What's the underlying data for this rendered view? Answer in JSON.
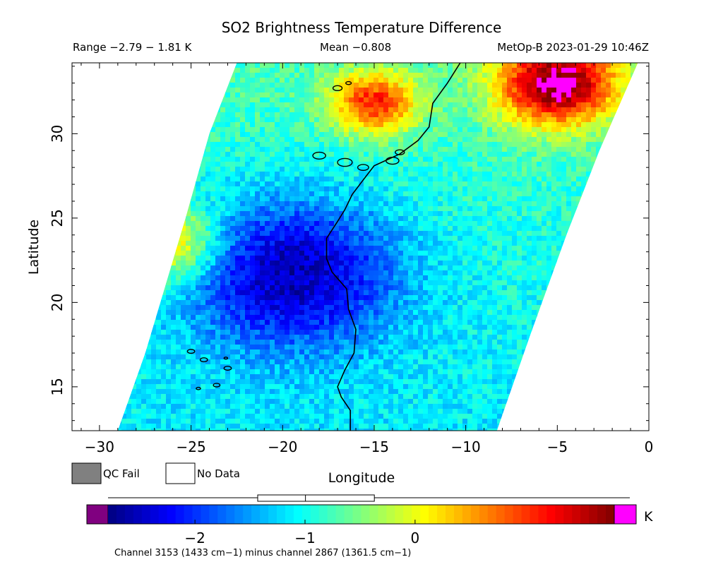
{
  "chart_data": {
    "type": "heatmap",
    "title": "SO2 Brightness Temperature Difference",
    "range_text": "Range −2.79 − 1.81 K",
    "mean_text": "Mean −0.808",
    "source_text": "MetOp-B 2023-01-29 10:46Z",
    "xlabel": "Longitude",
    "ylabel": "Latitude",
    "xlim": [
      -31.5,
      0
    ],
    "ylim": [
      12.4,
      34.2
    ],
    "xticks": [
      -30,
      -25,
      -20,
      -15,
      -10,
      -5,
      0
    ],
    "xtick_labels": [
      "−30",
      "−25",
      "−20",
      "−15",
      "−10",
      "−5",
      "0"
    ],
    "yticks": [
      15,
      20,
      25,
      30
    ],
    "ytick_labels": [
      "15",
      "20",
      "25",
      "30"
    ],
    "swath": {
      "left_edge": [
        [
          -29.0,
          12.4
        ],
        [
          -27.5,
          17.0
        ],
        [
          -25.3,
          25.0
        ],
        [
          -24.0,
          30.0
        ],
        [
          -22.5,
          34.2
        ]
      ],
      "right_edge": [
        [
          -8.3,
          12.4
        ],
        [
          -6.5,
          18.0
        ],
        [
          -4.5,
          24.0
        ],
        [
          -2.7,
          29.0
        ],
        [
          -0.6,
          34.2
        ]
      ]
    },
    "features": [
      {
        "name": "low-anomaly",
        "lon": -19.5,
        "lat": 21.8,
        "value": -2.6,
        "spread": 4.5
      },
      {
        "name": "high-band-north",
        "lon": -15,
        "lat": 31.8,
        "value": 0.9,
        "spread": 1.8
      },
      {
        "name": "high-west-edge",
        "lon": -26.5,
        "lat": 23.5,
        "value": 0.6,
        "spread": 2.2
      },
      {
        "name": "saturated-northeast",
        "lon": -5,
        "lat": 33,
        "value": 1.81,
        "spread": 2.5
      }
    ],
    "colorbar": {
      "min": -2.79,
      "max": 1.81,
      "ticks": [
        -2,
        -1,
        0
      ],
      "tick_labels": [
        "−2",
        "−1",
        "0"
      ],
      "unit": "K",
      "under_color": "#800080",
      "over_color": "#ff00ff",
      "box_whisker": {
        "whisker_low": -2.79,
        "q1": -1.43,
        "median": -0.996,
        "q3": -0.37,
        "whisker_high": 1.81
      },
      "caption": "Channel 3153 (1433 cm−1) minus channel 2867 (1361.5 cm−1)"
    },
    "legend": [
      {
        "label": "QC Fail",
        "color": "#808080"
      },
      {
        "label": "No Data",
        "color": "#ffffff"
      }
    ],
    "colormap": [
      "#00007f",
      "#0000ff",
      "#007fff",
      "#00ffff",
      "#7fff7f",
      "#ffff00",
      "#ff7f00",
      "#ff0000",
      "#7f0000"
    ]
  }
}
